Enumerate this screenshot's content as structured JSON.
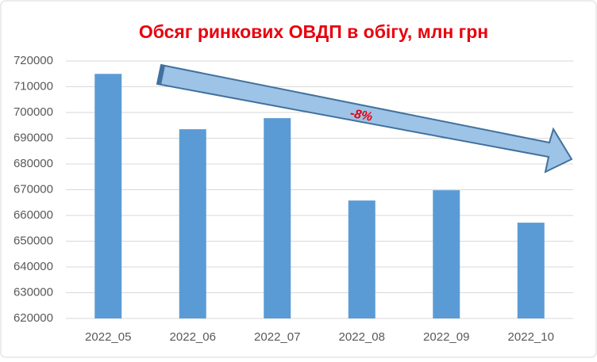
{
  "chart_data": {
    "type": "bar",
    "title": "Обсяг ринкових ОВДП в обігу, млн грн",
    "categories": [
      "2022_05",
      "2022_06",
      "2022_07",
      "2022_08",
      "2022_09",
      "2022_10"
    ],
    "values": [
      715000,
      693500,
      697800,
      665800,
      669800,
      657200
    ],
    "color": "#5b9bd5",
    "ylim": [
      620000,
      720000
    ],
    "yticks": [
      620000,
      630000,
      640000,
      650000,
      660000,
      670000,
      680000,
      690000,
      700000,
      710000,
      720000
    ],
    "grid": true,
    "annotation": "-8%"
  }
}
